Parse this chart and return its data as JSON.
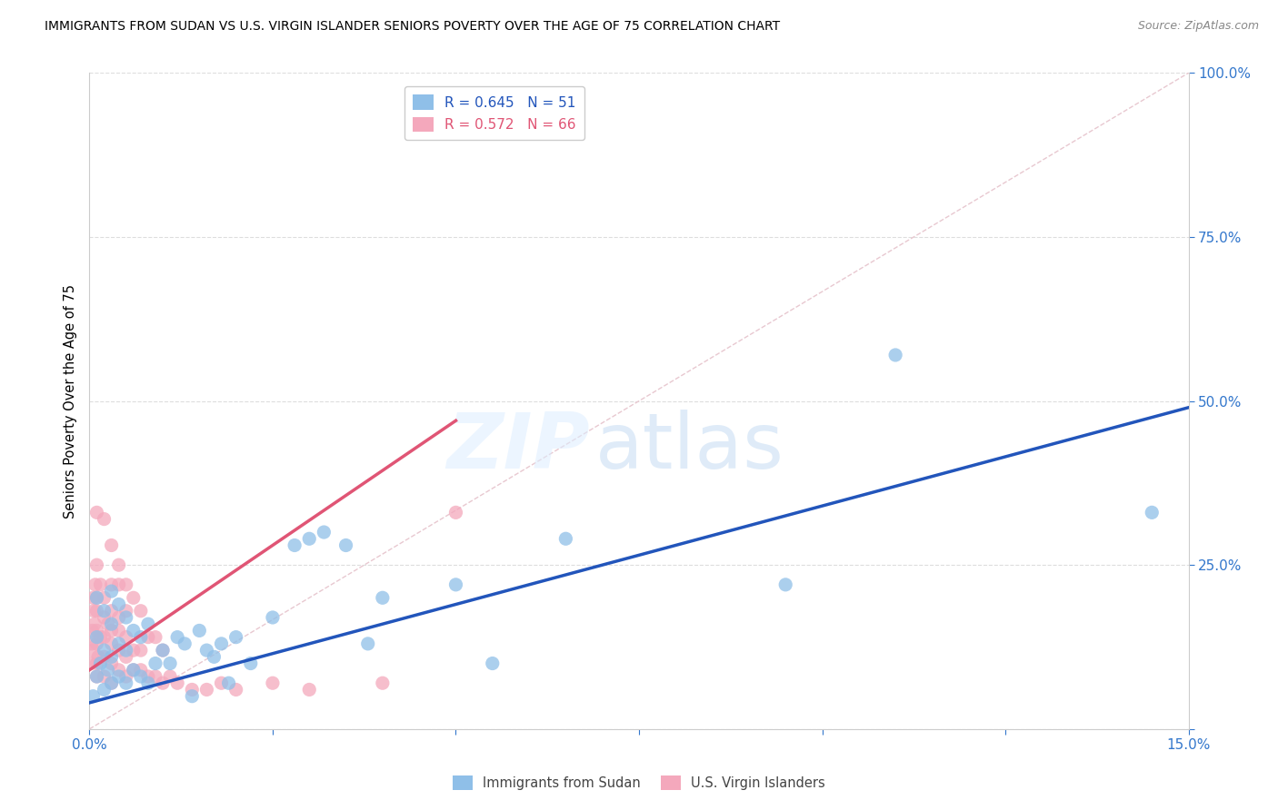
{
  "title": "IMMIGRANTS FROM SUDAN VS U.S. VIRGIN ISLANDER SENIORS POVERTY OVER THE AGE OF 75 CORRELATION CHART",
  "source": "Source: ZipAtlas.com",
  "ylabel": "Seniors Poverty Over the Age of 75",
  "xlim": [
    0.0,
    0.15
  ],
  "ylim": [
    0.0,
    1.0
  ],
  "xticks": [
    0.0,
    0.025,
    0.05,
    0.075,
    0.1,
    0.125,
    0.15
  ],
  "yticks": [
    0.0,
    0.25,
    0.5,
    0.75,
    1.0
  ],
  "blue_R": 0.645,
  "blue_N": 51,
  "pink_R": 0.572,
  "pink_N": 66,
  "blue_color": "#8fbfe8",
  "pink_color": "#f4a8bc",
  "blue_line_color": "#2255bb",
  "pink_line_color": "#e05575",
  "ref_line_color": "#cccccc",
  "watermark_zip": "ZIP",
  "watermark_atlas": "atlas",
  "legend_label_blue": "Immigrants from Sudan",
  "legend_label_pink": "U.S. Virgin Islanders",
  "blue_scatter_x": [
    0.0005,
    0.001,
    0.001,
    0.001,
    0.0015,
    0.002,
    0.002,
    0.002,
    0.0025,
    0.003,
    0.003,
    0.003,
    0.003,
    0.004,
    0.004,
    0.004,
    0.005,
    0.005,
    0.005,
    0.006,
    0.006,
    0.007,
    0.007,
    0.008,
    0.008,
    0.009,
    0.01,
    0.011,
    0.012,
    0.013,
    0.014,
    0.015,
    0.016,
    0.017,
    0.018,
    0.019,
    0.02,
    0.022,
    0.025,
    0.028,
    0.03,
    0.032,
    0.035,
    0.038,
    0.04,
    0.05,
    0.055,
    0.065,
    0.095,
    0.11,
    0.145
  ],
  "blue_scatter_y": [
    0.05,
    0.08,
    0.14,
    0.2,
    0.1,
    0.06,
    0.12,
    0.18,
    0.09,
    0.07,
    0.11,
    0.16,
    0.21,
    0.08,
    0.13,
    0.19,
    0.07,
    0.12,
    0.17,
    0.09,
    0.15,
    0.08,
    0.14,
    0.07,
    0.16,
    0.1,
    0.12,
    0.1,
    0.14,
    0.13,
    0.05,
    0.15,
    0.12,
    0.11,
    0.13,
    0.07,
    0.14,
    0.1,
    0.17,
    0.28,
    0.29,
    0.3,
    0.28,
    0.13,
    0.2,
    0.22,
    0.1,
    0.29,
    0.22,
    0.57,
    0.33
  ],
  "pink_scatter_x": [
    0.0002,
    0.0003,
    0.0004,
    0.0005,
    0.0005,
    0.0006,
    0.0007,
    0.0008,
    0.001,
    0.001,
    0.001,
    0.001,
    0.001,
    0.001,
    0.001,
    0.001,
    0.0012,
    0.0015,
    0.0015,
    0.002,
    0.002,
    0.002,
    0.002,
    0.002,
    0.002,
    0.0025,
    0.003,
    0.003,
    0.003,
    0.003,
    0.003,
    0.003,
    0.003,
    0.004,
    0.004,
    0.004,
    0.004,
    0.004,
    0.004,
    0.005,
    0.005,
    0.005,
    0.005,
    0.005,
    0.006,
    0.006,
    0.006,
    0.007,
    0.007,
    0.007,
    0.008,
    0.008,
    0.009,
    0.009,
    0.01,
    0.01,
    0.011,
    0.012,
    0.014,
    0.016,
    0.018,
    0.02,
    0.025,
    0.03,
    0.04,
    0.05
  ],
  "pink_scatter_y": [
    0.1,
    0.13,
    0.15,
    0.12,
    0.2,
    0.18,
    0.16,
    0.22,
    0.08,
    0.1,
    0.13,
    0.15,
    0.18,
    0.2,
    0.25,
    0.33,
    0.11,
    0.14,
    0.22,
    0.08,
    0.11,
    0.14,
    0.17,
    0.2,
    0.32,
    0.16,
    0.07,
    0.1,
    0.13,
    0.15,
    0.18,
    0.22,
    0.28,
    0.09,
    0.12,
    0.15,
    0.17,
    0.22,
    0.25,
    0.08,
    0.11,
    0.14,
    0.18,
    0.22,
    0.09,
    0.12,
    0.2,
    0.09,
    0.12,
    0.18,
    0.08,
    0.14,
    0.08,
    0.14,
    0.07,
    0.12,
    0.08,
    0.07,
    0.06,
    0.06,
    0.07,
    0.06,
    0.07,
    0.06,
    0.07,
    0.33
  ],
  "blue_trendline_x": [
    0.0,
    0.15
  ],
  "blue_trendline_y": [
    0.04,
    0.49
  ],
  "pink_trendline_x": [
    0.0,
    0.05
  ],
  "pink_trendline_y": [
    0.09,
    0.47
  ],
  "ref_line_x": [
    0.0,
    0.15
  ],
  "ref_line_y": [
    0.0,
    1.0
  ]
}
